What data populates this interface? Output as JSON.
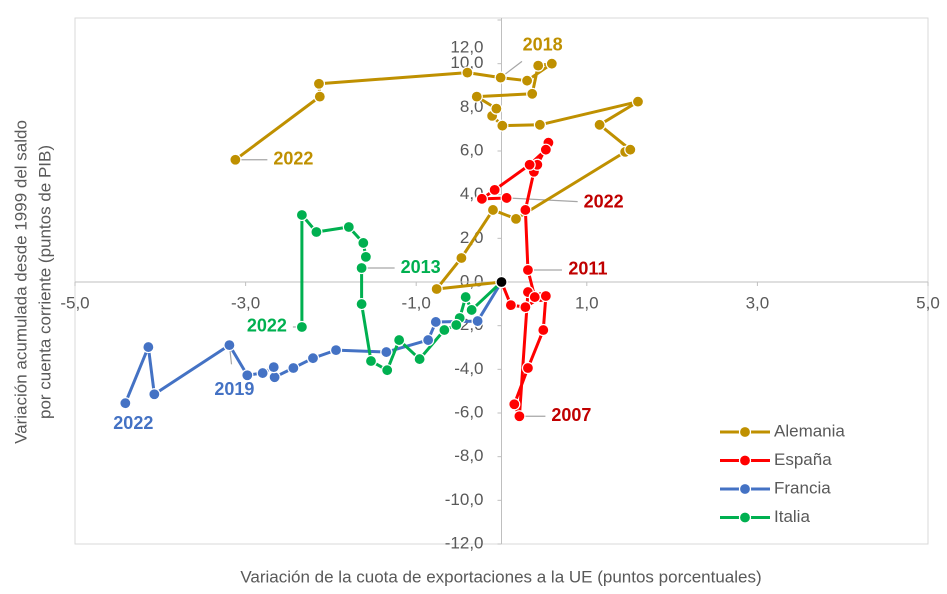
{
  "chart_data": {
    "type": "scatter",
    "x_label": "Variación de la cuota de exportaciones a la UE (puntos porcentuales)",
    "y_label": [
      "Variación acumulada desde 1999 del saldo",
      "por cuenta corriente (puntos de PIB)"
    ],
    "xlim": [
      -5,
      5
    ],
    "ylim": [
      -12,
      12
    ],
    "xticks": [
      {
        "value": -5,
        "label": "-5,0"
      },
      {
        "value": -3,
        "label": "-3,0"
      },
      {
        "value": -1,
        "label": "-1,0"
      },
      {
        "value": 1,
        "label": "1,0"
      },
      {
        "value": 3,
        "label": "3,0"
      },
      {
        "value": 5,
        "label": "5,0"
      }
    ],
    "yticks": [
      {
        "value": -12,
        "label": "-12,0"
      },
      {
        "value": -10,
        "label": "-10,0"
      },
      {
        "value": -8,
        "label": "-8,0"
      },
      {
        "value": -6,
        "label": "-6,0"
      },
      {
        "value": -4,
        "label": "-4,0"
      },
      {
        "value": -2,
        "label": "-2,0"
      },
      {
        "value": 0,
        "label": "0,0"
      },
      {
        "value": 2,
        "label": "2,0"
      },
      {
        "value": 4,
        "label": "4,0"
      },
      {
        "value": 6,
        "label": "6,0"
      },
      {
        "value": 8,
        "label": "8,0"
      },
      {
        "value": 10,
        "label": "10,0"
      },
      {
        "value": 12,
        "label": "12,0"
      }
    ],
    "legend": "bottom-right",
    "series": [
      {
        "name": "Alemania",
        "color": "#bf9000",
        "x": [
          0,
          -0.76,
          -0.47,
          -0.1,
          0.17,
          1.45,
          1.51,
          1.15,
          1.6,
          0.45,
          0.01,
          -0.11,
          -0.06,
          -0.29,
          0.36,
          0.43,
          0.59,
          0.3,
          -0.01,
          -0.4,
          -2.14,
          -2.13,
          -3.12
        ],
        "y": [
          0,
          -0.32,
          1.1,
          3.3,
          2.89,
          5.96,
          6.06,
          7.2,
          8.26,
          7.2,
          7.16,
          7.61,
          7.94,
          8.49,
          8.62,
          9.91,
          10.0,
          9.22,
          9.36,
          9.59,
          9.08,
          8.49,
          5.6
        ]
      },
      {
        "name": "España",
        "color": "#ff0000",
        "x": [
          0,
          0.11,
          0.28,
          0.46,
          0.52,
          0.49,
          0.31,
          0.15,
          0.21,
          0.31,
          0.39,
          0.31,
          0.28,
          0.38,
          0.42,
          0.55,
          0.52,
          0.33,
          -0.08,
          -0.23,
          0.06
        ],
        "y": [
          0,
          -1.06,
          -1.15,
          -0.69,
          -0.64,
          -2.2,
          -3.94,
          -5.6,
          -6.15,
          -0.46,
          -0.69,
          0.55,
          3.3,
          5.05,
          5.37,
          6.38,
          6.06,
          5.37,
          4.22,
          3.81,
          3.85
        ]
      },
      {
        "name": "Francia",
        "color": "#4472c4",
        "x": [
          0,
          -0.28,
          -0.77,
          -0.86,
          -1.35,
          -1.94,
          -2.21,
          -2.44,
          -2.66,
          -2.67,
          -2.8,
          -2.98,
          -3.19,
          -4.07,
          -4.14,
          -4.41
        ],
        "y": [
          0,
          -1.79,
          -1.83,
          -2.66,
          -3.21,
          -3.12,
          -3.49,
          -3.94,
          -4.36,
          -3.9,
          -4.17,
          -4.27,
          -2.89,
          -5.14,
          -2.98,
          -5.55
        ]
      },
      {
        "name": "Italia",
        "color": "#00b050",
        "x": [
          0,
          -0.35,
          -0.42,
          -0.49,
          -0.53,
          -0.67,
          -0.96,
          -1.2,
          -1.34,
          -1.53,
          -1.64,
          -1.64,
          -1.59,
          -1.62,
          -1.79,
          -2.17,
          -2.34,
          -2.34
        ],
        "y": [
          0,
          -1.28,
          -0.69,
          -1.65,
          -1.97,
          -2.2,
          -3.53,
          -2.66,
          -4.04,
          -3.62,
          -1.01,
          0.64,
          1.15,
          1.79,
          2.52,
          2.29,
          3.07,
          -2.06
        ]
      }
    ],
    "origin_point": {
      "x": 0,
      "y": 0,
      "color": "#000000"
    },
    "annotations": [
      {
        "text": "2018",
        "color": "#bf9000",
        "x": -0.01,
        "y": 9.36
      },
      {
        "text": "2022",
        "color": "#bf9000",
        "x": -3.12,
        "y": 5.6
      },
      {
        "text": "2022",
        "color": "#c00000",
        "x": 0.06,
        "y": 3.85
      },
      {
        "text": "2011",
        "color": "#c00000",
        "x": 0.31,
        "y": 0.55
      },
      {
        "text": "2007",
        "color": "#c00000",
        "x": 0.21,
        "y": -6.15
      },
      {
        "text": "2013",
        "color": "#00b050",
        "x": -1.64,
        "y": 0.64
      },
      {
        "text": "2022",
        "color": "#00b050",
        "x": -2.34,
        "y": -2.06
      },
      {
        "text": "2019",
        "color": "#4472c4",
        "x": -3.19,
        "y": -2.89
      },
      {
        "text": "2022",
        "color": "#4472c4",
        "x": -4.41,
        "y": -5.55
      }
    ]
  }
}
